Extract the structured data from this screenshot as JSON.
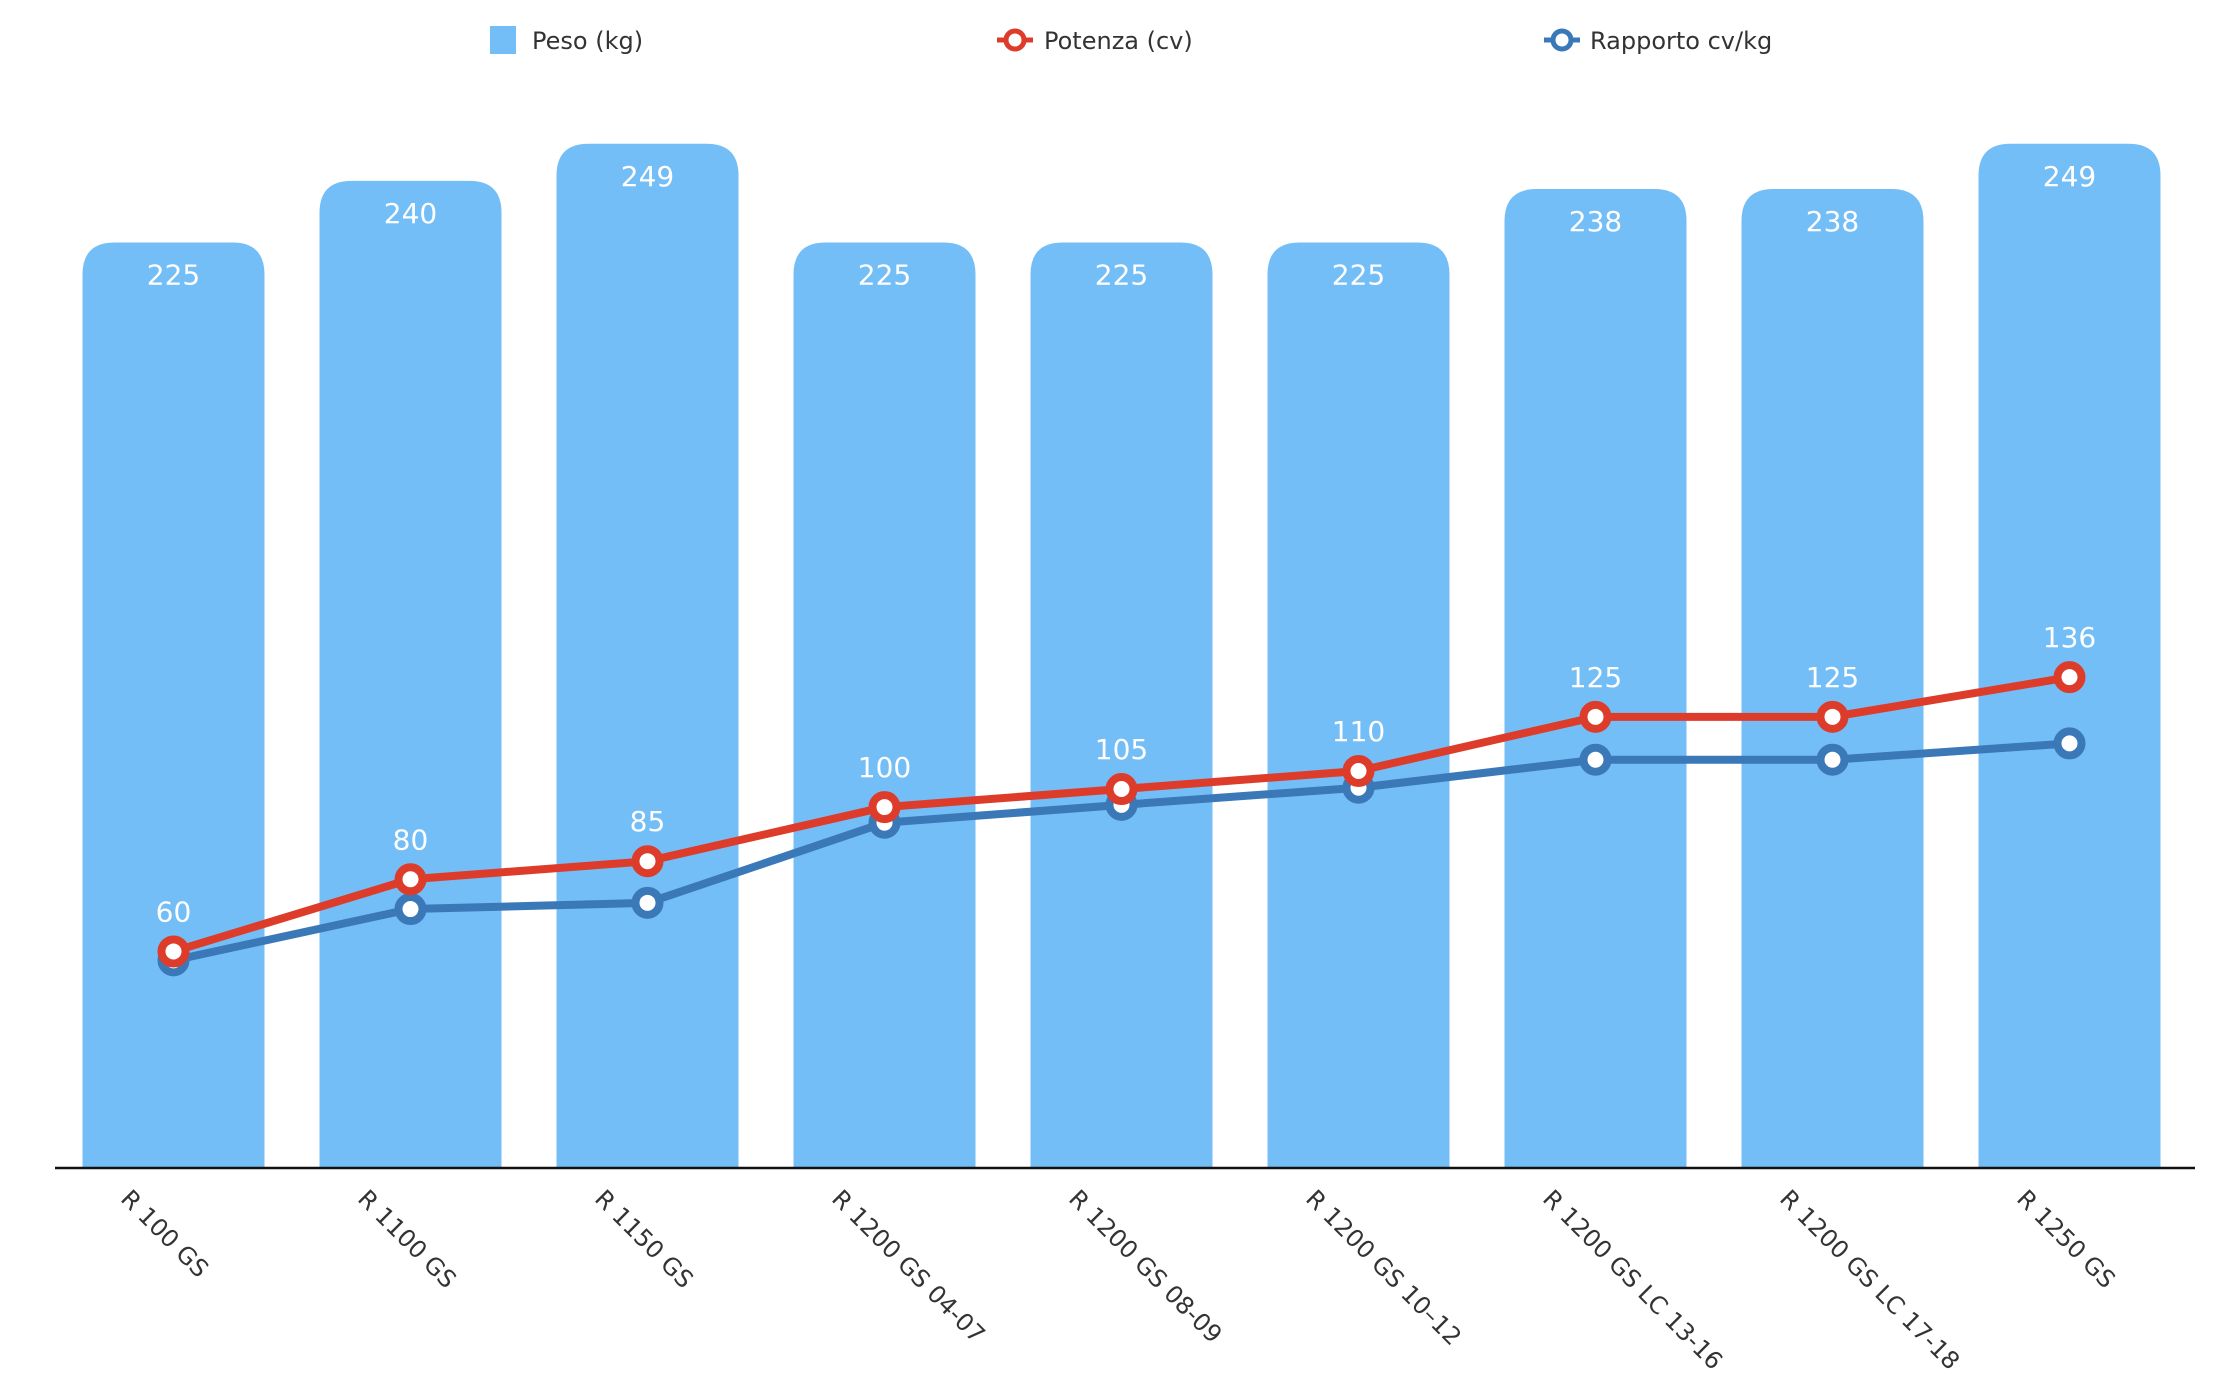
{
  "chart_data": {
    "type": "bar",
    "title": "",
    "xlabel": "",
    "ylabel": "",
    "ylim": [
      0,
      265
    ],
    "y2lim": [
      0,
      302
    ],
    "grid": false,
    "legend_position": "top",
    "categories": [
      "R 100 GS",
      "R 1100 GS",
      "R 1150 GS",
      "R 1200 GS 04-07",
      "R 1200 GS 08-09",
      "R 1200 GS 10–12",
      "R 1200 GS LC 13-16",
      "R 1200 GS LC 17-18",
      "R 1250 GS"
    ],
    "series": [
      {
        "name": "Peso (kg)",
        "type": "bar",
        "values": [
          225,
          240,
          249,
          225,
          225,
          225,
          238,
          238,
          249
        ],
        "color": "#74BEF7",
        "labels": true
      },
      {
        "name": "Potenza (cv)",
        "type": "line",
        "values": [
          60,
          80,
          85,
          100,
          105,
          110,
          125,
          125,
          136
        ],
        "color": "#DE3C2B",
        "labels": true
      },
      {
        "name": "Rapporto cv/kg",
        "type": "line",
        "values": [
          0.267,
          0.333,
          0.341,
          0.444,
          0.467,
          0.489,
          0.525,
          0.525,
          0.546
        ],
        "color": "#3A78B8",
        "labels": false
      }
    ]
  }
}
